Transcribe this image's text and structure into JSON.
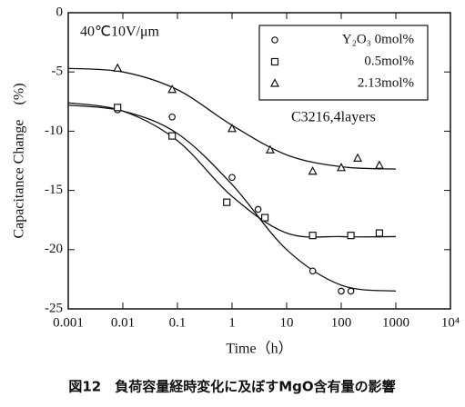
{
  "chart_data": {
    "type": "scatter",
    "log_x": true,
    "xlabel": "Time（h）",
    "ylabel": "Capacitance Change　(%)",
    "caption": "図12　負荷容量経時変化に及ぼすMgO含有量の影響",
    "annotations": [
      "40℃10V/μm",
      "C3216,4layers"
    ],
    "xlim": [
      0.001,
      10000
    ],
    "xticks": [
      0.001,
      0.01,
      0.1,
      1,
      10,
      100,
      1000,
      {
        "value": 10000,
        "label": "10⁴"
      }
    ],
    "ylim": [
      -25,
      0
    ],
    "yticks": [
      0,
      -5,
      -10,
      -15,
      -20,
      -25
    ],
    "legend": "upper right",
    "series": [
      {
        "name": "Y₂O₃ 0mol%",
        "marker": "circle",
        "color": "#111111",
        "x": [
          0.008,
          0.08,
          1,
          3,
          30,
          100,
          150
        ],
        "values": [
          -8.2,
          -8.8,
          -13.9,
          -16.6,
          -21.8,
          -23.5,
          -23.5
        ],
        "fit_x": [
          0.001,
          0.01,
          0.1,
          1,
          10,
          100,
          1000
        ],
        "fit_values": [
          -7.8,
          -8.3,
          -10.2,
          -14.5,
          -20.0,
          -23.0,
          -23.5
        ]
      },
      {
        "name": "0.5mol%",
        "marker": "square",
        "color": "#111111",
        "x": [
          0.008,
          0.08,
          0.8,
          4,
          30,
          150,
          500
        ],
        "values": [
          -8.0,
          -10.4,
          -16.0,
          -17.3,
          -18.8,
          -18.8,
          -18.6
        ],
        "fit_x": [
          0.001,
          0.01,
          0.1,
          1,
          10,
          100,
          1000
        ],
        "fit_values": [
          -7.6,
          -8.3,
          -10.8,
          -15.5,
          -18.6,
          -18.9,
          -18.9
        ]
      },
      {
        "name": "2.13mol%",
        "marker": "triangle",
        "color": "#111111",
        "x": [
          0.008,
          0.08,
          1,
          5,
          30,
          100,
          200,
          500
        ],
        "values": [
          -4.7,
          -6.5,
          -9.8,
          -11.6,
          -13.4,
          -13.1,
          -12.3,
          -12.9
        ],
        "fit_x": [
          0.001,
          0.01,
          0.1,
          1,
          10,
          100,
          1000
        ],
        "fit_values": [
          -4.7,
          -5.0,
          -6.5,
          -9.5,
          -12.0,
          -13.0,
          -13.2
        ]
      }
    ]
  }
}
